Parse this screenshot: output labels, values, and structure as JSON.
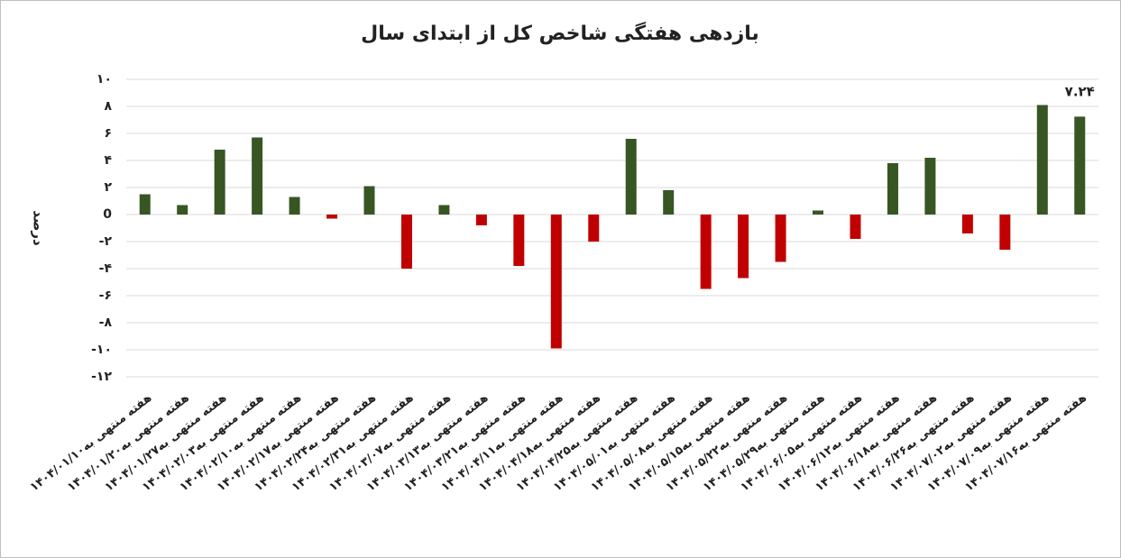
{
  "chart_data": {
    "type": "bar",
    "title": "بازدهی هفتگی شاخص کل از ابتدای سال",
    "y_label": "درصد",
    "categories": [
      "هفته منتهی به۱۴۰۴/۰۱/۱۰",
      "هفته منتهی به۱۴۰۴/۰۱/۲۰",
      "هفته منتهی به۱۴۰۴/۰۱/۲۷",
      "هفته منتهی به۱۴۰۴/۰۲/۰۳",
      "هفته منتهی به۱۴۰۴/۰۲/۱۰",
      "هفته منتهی به۱۴۰۴/۰۲/۱۷",
      "هفته منتهی به۱۴۰۴/۰۲/۲۴",
      "هفته منتهی به۱۴۰۴/۰۲/۳۱",
      "هفته منتهی به۱۴۰۴/۰۳/۰۷",
      "هفته منتهی به۱۴۰۴/۰۳/۱۳",
      "هفته منتهی به۱۴۰۴/۰۳/۲۱",
      "هفته منتهی به۱۴۰۴/۰۴/۱۱",
      "هفته منتهی به۱۴۰۴/۰۴/۱۸",
      "هفته منتهی به۱۴۰۴/۰۴/۲۵",
      "هفته منتهی به۱۴۰۴/۰۵/۰۱",
      "هفته منتهی به۱۴۰۴/۰۵/۰۸",
      "هفته منتهی به۱۴۰۴/۰۵/۱۵",
      "هفته منتهی به۱۴۰۴/۰۵/۲۲",
      "هفته منتهی به۱۴۰۴/۰۵/۲۹",
      "هفته منتهی به۱۴۰۴/۰۶/۰۵",
      "هفته منتهی به۱۴۰۴/۰۶/۱۲",
      "هفته منتهی به۱۴۰۴/۰۶/۱۸",
      "هفته منتهی به۱۴۰۴/۰۶/۲۶",
      "هفته منتهی به۱۴۰۴/۰۷/۰۲",
      "هفته منتهی به۱۴۰۴/۰۷/۰۹",
      "هفته منتهی به۱۴۰۴/۰۷/۱۶"
    ],
    "values": [
      1.5,
      0.7,
      4.8,
      5.7,
      1.3,
      -0.3,
      2.1,
      -4.0,
      0.7,
      -0.8,
      -3.8,
      -9.9,
      -2.0,
      5.6,
      1.8,
      -5.5,
      -4.7,
      -3.5,
      0.3,
      -1.8,
      3.8,
      4.2,
      -1.4,
      -2.6,
      8.1,
      7.24
    ],
    "value_labels": [
      null,
      null,
      null,
      null,
      null,
      null,
      null,
      null,
      null,
      null,
      null,
      null,
      null,
      null,
      null,
      null,
      null,
      null,
      null,
      null,
      null,
      null,
      null,
      null,
      null,
      "۷.۲۴"
    ],
    "color": "#375623",
    "negative_color": "#c00000",
    "ylim": [
      -12,
      10
    ],
    "yticks": [
      {
        "value": -12,
        "label": "-۱۲"
      },
      {
        "value": -10,
        "label": "-۱۰"
      },
      {
        "value": -8,
        "label": "-۸"
      },
      {
        "value": -6,
        "label": "-۶"
      },
      {
        "value": -4,
        "label": "-۴"
      },
      {
        "value": -2,
        "label": "-۲"
      },
      0,
      {
        "value": 2,
        "label": "۲"
      },
      {
        "value": 4,
        "label": "۴"
      },
      {
        "value": 6,
        "label": "۶"
      },
      {
        "value": 8,
        "label": "۸"
      },
      {
        "value": 10,
        "label": "۱۰"
      }
    ],
    "grid": true
  }
}
